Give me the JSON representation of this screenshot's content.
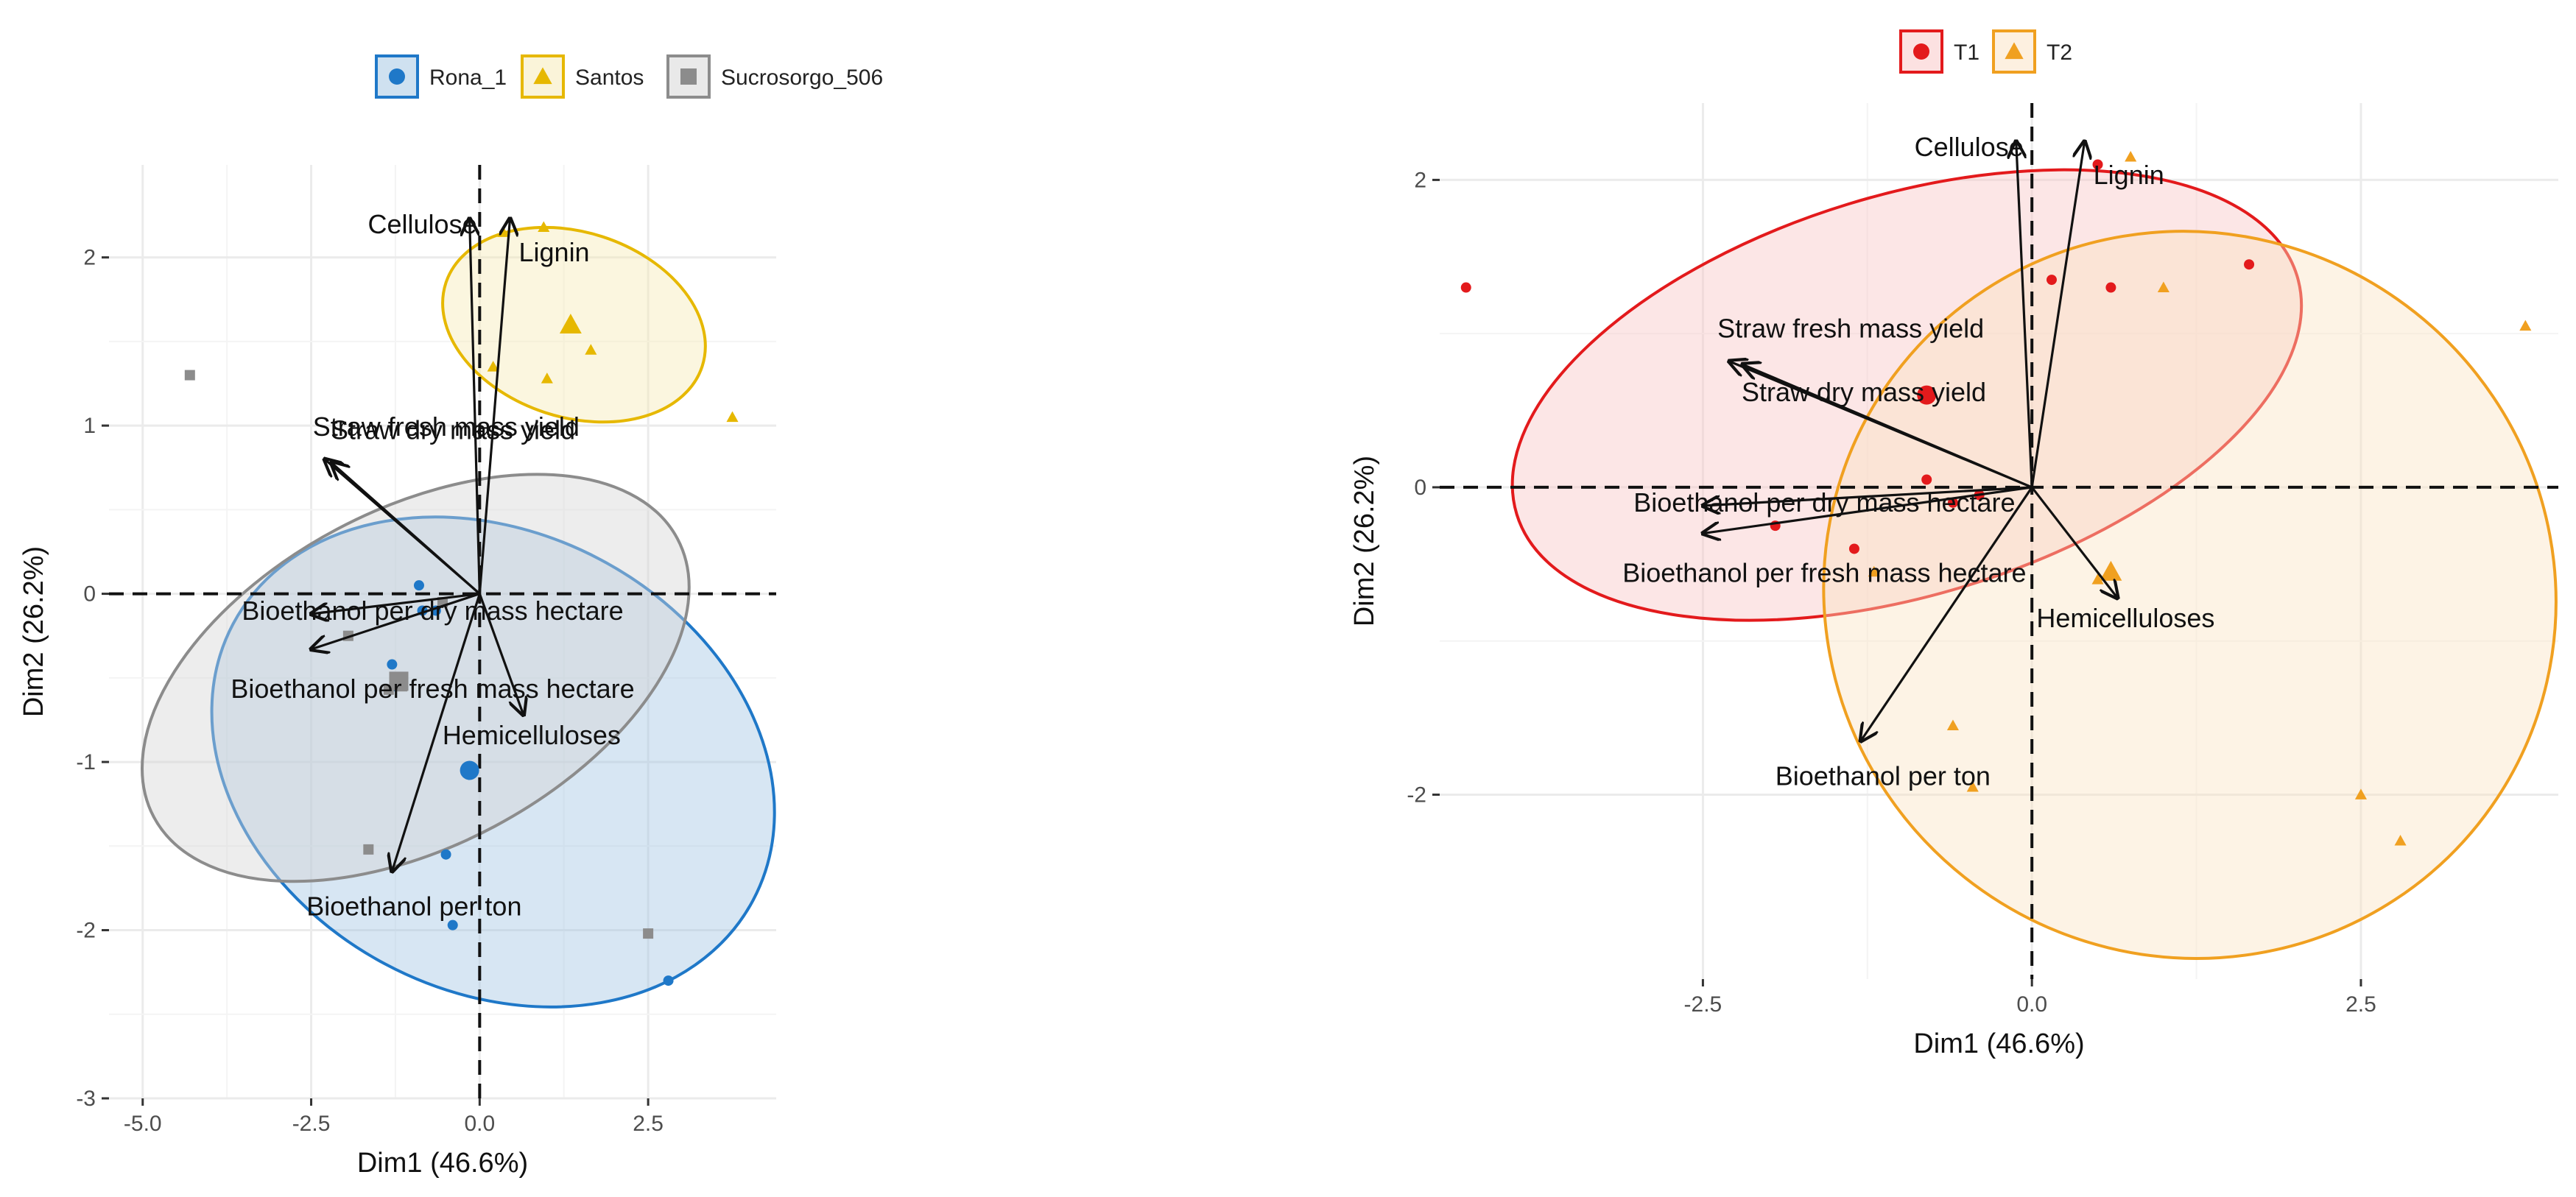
{
  "chart_data": [
    {
      "type": "scatter",
      "subtype": "pca-biplot",
      "xlabel": "Dim1 (46.6%)",
      "ylabel": "Dim2 (26.2%)",
      "xlim": [
        -5.5,
        4.4
      ],
      "ylim": [
        -3.0,
        2.55
      ],
      "xticks": [
        -5.0,
        -2.5,
        0.0,
        2.5
      ],
      "xtick_labels": [
        "-5.0",
        "-2.5",
        "0.0",
        "2.5"
      ],
      "yticks": [
        -3,
        -2,
        -1,
        0,
        1,
        2
      ],
      "ytick_labels": [
        "-3",
        "-2",
        "-1",
        "0",
        "1",
        "2"
      ],
      "legend_position": "top",
      "grid": true,
      "groups": [
        {
          "name": "Rona_1",
          "color": "#1f78c8",
          "fill": "#9fc3e2",
          "marker": "circle",
          "points": [
            [
              -0.9,
              0.05
            ],
            [
              -0.65,
              -0.1
            ],
            [
              -1.3,
              -0.42
            ],
            [
              -0.5,
              -1.55
            ],
            [
              -0.4,
              -1.97
            ],
            [
              2.8,
              -2.3
            ],
            [
              -1.25,
              -0.55
            ],
            [
              -0.85,
              -0.1
            ]
          ],
          "centroid": [
            -0.15,
            -1.05
          ],
          "ellipse": {
            "cx": 0.2,
            "cy": -1.0,
            "rx": 3.4,
            "ry": 1.75,
            "angle_deg": 62
          }
        },
        {
          "name": "Santos",
          "color": "#e6b800",
          "fill": "#f5e9b3",
          "marker": "triangle",
          "points": [
            [
              0.95,
              2.18
            ],
            [
              1.0,
              1.28
            ],
            [
              1.65,
              1.45
            ],
            [
              3.75,
              1.05
            ],
            [
              0.2,
              1.35
            ],
            [
              0.35,
              2.15
            ]
          ],
          "centroid": [
            1.35,
            1.6
          ],
          "ellipse": {
            "cx": 1.4,
            "cy": 1.6,
            "rx": 2.0,
            "ry": 0.55,
            "angle_deg": -18
          }
        },
        {
          "name": "Sucrosorgo_506",
          "color": "#8c8c8c",
          "fill": "#d4d4d4",
          "marker": "square",
          "points": [
            [
              -4.3,
              1.3
            ],
            [
              -1.95,
              -0.25
            ],
            [
              -1.35,
              -0.57
            ],
            [
              -1.65,
              -1.52
            ],
            [
              2.5,
              -2.02
            ],
            [
              -1.15,
              -0.55
            ],
            [
              -0.55,
              -0.05
            ]
          ],
          "centroid": [
            -1.2,
            -0.52
          ],
          "ellipse": {
            "cx": -0.95,
            "cy": -0.5,
            "rx": 4.4,
            "ry": 1.0,
            "angle_deg": 28
          }
        }
      ],
      "arrows": [
        {
          "label": "Cellulose",
          "x": -0.15,
          "y": 2.23
        },
        {
          "label": "Lignin",
          "x": 0.45,
          "y": 2.23
        },
        {
          "label": "Straw fresh mass yield",
          "x": -2.3,
          "y": 0.8
        },
        {
          "label": "Straw dry mass yield",
          "x": -2.2,
          "y": 0.78
        },
        {
          "label": "Bioethanol per dry mass hectare",
          "x": -2.5,
          "y": -0.12
        },
        {
          "label": "Bioethanol per fresh mass hectare",
          "x": -2.5,
          "y": -0.33
        },
        {
          "label": "Hemicelluloses",
          "x": 0.65,
          "y": -0.72
        },
        {
          "label": "Bioethanol per ton",
          "x": -1.3,
          "y": -1.65
        }
      ]
    },
    {
      "type": "scatter",
      "subtype": "pca-biplot",
      "xlabel": "Dim1 (46.6%)",
      "ylabel": "Dim2 (26.2%)",
      "xlim": [
        -4.5,
        4.0
      ],
      "ylim": [
        -3.2,
        2.5
      ],
      "xticks": [
        -2.5,
        0.0,
        2.5
      ],
      "xtick_labels": [
        "-2.5",
        "0.0",
        "2.5"
      ],
      "yticks": [
        -2,
        0,
        2
      ],
      "ytick_labels": [
        "-2",
        "0",
        "2"
      ],
      "legend_position": "top",
      "grid": true,
      "groups": [
        {
          "name": "T1",
          "color": "#e31a1c",
          "fill": "#f9c4c4",
          "marker": "circle",
          "points": [
            [
              -4.3,
              1.3
            ],
            [
              0.15,
              1.35
            ],
            [
              0.6,
              1.3
            ],
            [
              1.65,
              1.45
            ],
            [
              -0.8,
              0.05
            ],
            [
              -0.6,
              -0.1
            ],
            [
              -0.4,
              -0.05
            ],
            [
              -1.35,
              -0.4
            ],
            [
              -1.95,
              -0.25
            ],
            [
              0.5,
              2.1
            ]
          ],
          "centroid": [
            -0.8,
            0.6
          ],
          "ellipse": {
            "cx": -0.95,
            "cy": 0.6,
            "rx": 3.1,
            "ry": 1.3,
            "angle_deg": 17
          }
        },
        {
          "name": "T2",
          "color": "#f0a020",
          "fill": "#fbe2c2",
          "marker": "triangle",
          "points": [
            [
              0.75,
              2.15
            ],
            [
              1.0,
              1.3
            ],
            [
              3.75,
              1.05
            ],
            [
              -0.45,
              -1.95
            ],
            [
              2.5,
              -2.0
            ],
            [
              2.8,
              -2.3
            ],
            [
              -0.6,
              -1.55
            ],
            [
              -1.2,
              -0.55
            ],
            [
              0.5,
              -0.6
            ]
          ],
          "centroid": [
            0.6,
            -0.55
          ],
          "ellipse": {
            "cx": 1.2,
            "cy": -0.7,
            "rx": 2.8,
            "ry": 2.35,
            "angle_deg": -35
          }
        }
      ],
      "arrows": [
        {
          "label": "Cellulose",
          "x": -0.12,
          "y": 2.25
        },
        {
          "label": "Lignin",
          "x": 0.4,
          "y": 2.25
        },
        {
          "label": "Straw fresh mass yield",
          "x": -2.3,
          "y": 0.82
        },
        {
          "label": "Straw dry mass yield",
          "x": -2.2,
          "y": 0.8
        },
        {
          "label": "Bioethanol per dry mass hectare",
          "x": -2.5,
          "y": -0.12
        },
        {
          "label": "Bioethanol per fresh mass hectare",
          "x": -2.5,
          "y": -0.3
        },
        {
          "label": "Hemicelluloses",
          "x": 0.65,
          "y": -0.72
        },
        {
          "label": "Bioethanol per ton",
          "x": -1.3,
          "y": -1.65
        }
      ]
    }
  ]
}
